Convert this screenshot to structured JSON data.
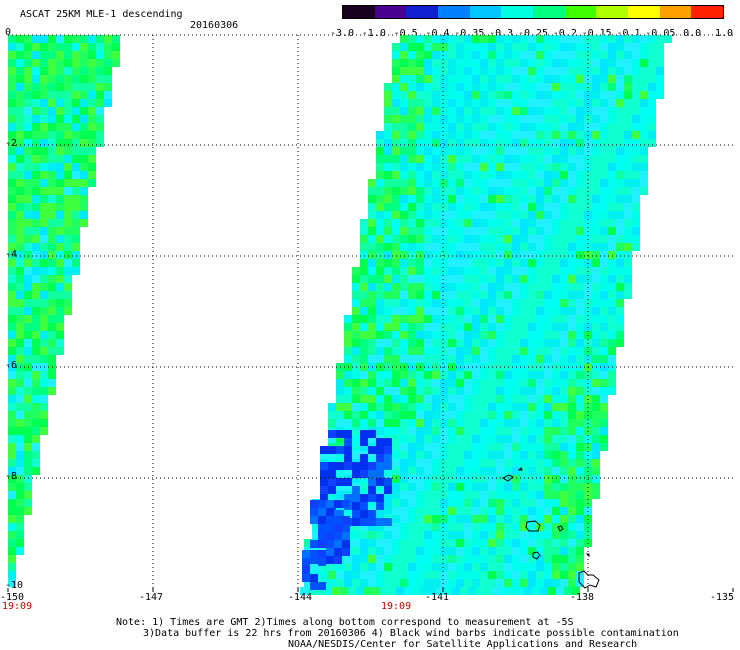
{
  "header": {
    "title": "ASCAT 25KM MLE-1 descending",
    "date": "20160306"
  },
  "colorbar": {
    "labels": [
      "-3.0",
      "-1.0",
      "-0.5",
      "-0.4",
      "-0.35",
      "-0.3",
      "-0.25",
      "-0.2",
      "-0.15",
      "-0.1",
      "-0.05",
      "0.0",
      "1.0"
    ],
    "colors": [
      "#1a0020",
      "#4a0090",
      "#1020d0",
      "#0080ff",
      "#00c8ff",
      "#00ffe0",
      "#00ff80",
      "#40ff00",
      "#b0ff00",
      "#ffff00",
      "#ffa000",
      "#ff2000"
    ]
  },
  "axes": {
    "y_labels": [
      "0",
      "-2",
      "-4",
      "-6",
      "-8",
      "-10"
    ],
    "x_labels": [
      "-150",
      "-147",
      "-144",
      "-141",
      "-138",
      "-135"
    ],
    "time_labels": [
      "19:09",
      "19:09"
    ]
  },
  "notes": {
    "line1": "Note: 1) Times are GMT 2)Times along bottom correspond to measurement at -5S",
    "line2": "3)Data buffer is 22 hrs from 20160306 4) Black wind barbs indicate possible contamination",
    "line3": "NOAA/NESDIS/Center for Satellite Applications and Research"
  },
  "map_legend": {
    "grid_style": "dotted",
    "swath_colors": [
      "#00ffe0",
      "#00ff80",
      "#00e8ff",
      "#40ff40",
      "#00c8ff",
      "#10d0ff"
    ],
    "low_colors": [
      "#0030f0",
      "#0050ff",
      "#2020ff"
    ]
  }
}
